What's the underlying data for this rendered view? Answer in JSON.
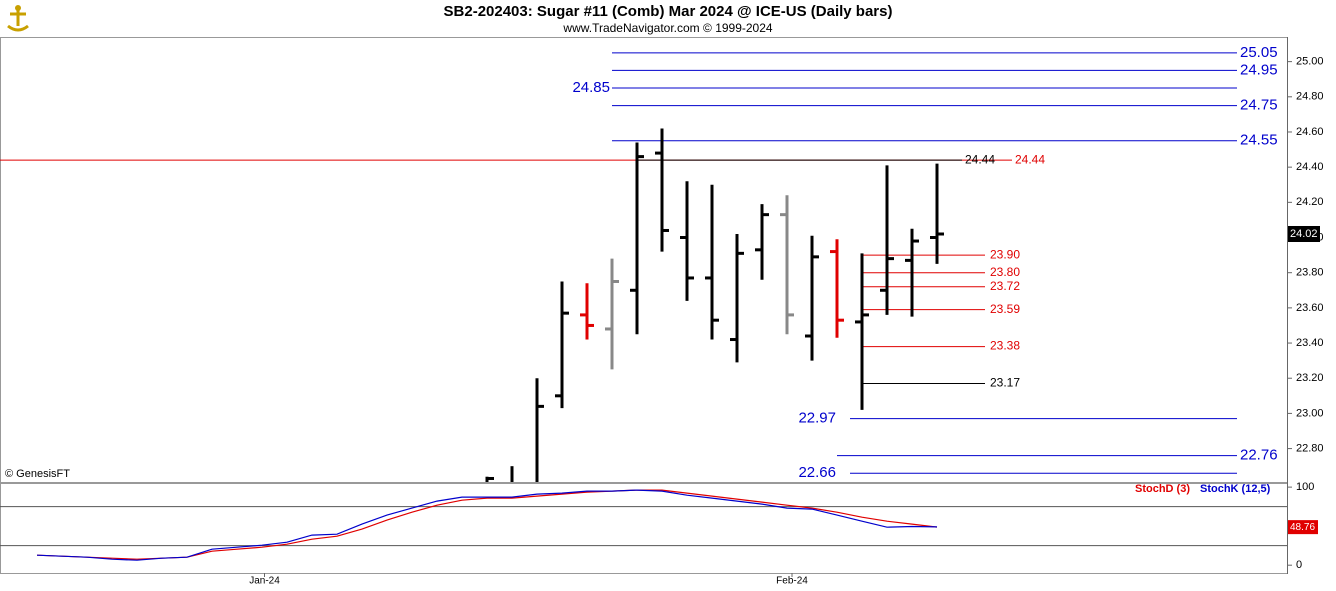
{
  "chart_data": [
    {
      "type": "ohlc",
      "title": "SB2-202403:  Sugar #11 (Comb) Mar 2024 @ ICE-US  (Daily bars)",
      "subtitle": "www.TradeNavigator.com © 1999-2024",
      "annotation": "© GenesisFT",
      "x": [
        18,
        19,
        20,
        21,
        22,
        23,
        24,
        25,
        26,
        27,
        28,
        29,
        30,
        31,
        32,
        33,
        34,
        35,
        36
      ],
      "open": [
        22.5,
        22.55,
        22.6,
        23.1,
        23.56,
        23.48,
        23.7,
        24.48,
        24.0,
        23.77,
        23.42,
        23.93,
        24.13,
        23.44,
        23.92,
        23.52,
        23.7,
        23.87,
        24.0
      ],
      "high": [
        22.64,
        22.7,
        23.2,
        23.75,
        23.74,
        23.88,
        24.54,
        24.62,
        24.32,
        24.3,
        24.02,
        24.19,
        24.24,
        24.01,
        23.99,
        23.91,
        24.41,
        24.05,
        24.42
      ],
      "low": [
        22.4,
        22.45,
        22.55,
        23.03,
        23.42,
        23.25,
        23.45,
        23.92,
        23.64,
        23.42,
        23.29,
        23.76,
        23.45,
        23.3,
        23.43,
        23.02,
        23.56,
        23.55,
        23.85
      ],
      "close": [
        22.63,
        22.6,
        23.04,
        23.57,
        23.5,
        23.75,
        24.46,
        24.04,
        23.77,
        23.53,
        23.91,
        24.13,
        23.56,
        23.89,
        23.53,
        23.56,
        23.88,
        23.98,
        24.02
      ],
      "colors": [
        "#000000",
        "#000000",
        "#000000",
        "#000000",
        "#e00000",
        "#888888",
        "#000000",
        "#000000",
        "#000000",
        "#000000",
        "#000000",
        "#000000",
        "#888888",
        "#000000",
        "#e00000",
        "#000000",
        "#000000",
        "#000000",
        "#000000"
      ],
      "xlim": [
        -1.48,
        50
      ],
      "ylim": [
        22.61,
        25.14
      ],
      "yticks": [
        {
          "value": 22.8,
          "label": "22.80"
        },
        {
          "value": 23.0,
          "label": "23.00"
        },
        {
          "value": 23.2,
          "label": "23.20"
        },
        {
          "value": 23.4,
          "label": "23.40"
        },
        {
          "value": 23.6,
          "label": "23.60"
        },
        {
          "value": 23.8,
          "label": "23.80"
        },
        {
          "value": 24.0,
          "label": "24.00"
        },
        {
          "value": 24.2,
          "label": "24.20"
        },
        {
          "value": 24.4,
          "label": "24.40"
        },
        {
          "value": 24.6,
          "label": "24.60"
        },
        {
          "value": 24.8,
          "label": "24.80"
        },
        {
          "value": 25.0,
          "label": "25.00"
        }
      ],
      "levels": [
        {
          "value": 25.05,
          "label": "25.05",
          "color": "#0000cc"
        },
        {
          "value": 24.95,
          "label": "24.95",
          "color": "#0000cc"
        },
        {
          "value": 24.85,
          "label": "24.85",
          "color": "#0000cc"
        },
        {
          "value": 24.75,
          "label": "24.75",
          "color": "#0000cc"
        },
        {
          "value": 24.55,
          "label": "24.55",
          "color": "#0000cc"
        },
        {
          "value": 24.44,
          "label": "24.44",
          "color": "#e00000"
        },
        {
          "value": 24.44,
          "label": "24.44",
          "color": "#000000"
        },
        {
          "value": 23.9,
          "label": "23.90",
          "color": "#e00000"
        },
        {
          "value": 23.8,
          "label": "23.80",
          "color": "#e00000"
        },
        {
          "value": 23.72,
          "label": "23.72",
          "color": "#e00000"
        },
        {
          "value": 23.59,
          "label": "23.59",
          "color": "#e00000"
        },
        {
          "value": 23.38,
          "label": "23.38",
          "color": "#e00000"
        },
        {
          "value": 23.17,
          "label": "23.17",
          "color": "#000000"
        },
        {
          "value": 22.97,
          "label": "22.97",
          "color": "#0000cc"
        },
        {
          "value": 22.76,
          "label": "22.76",
          "color": "#0000cc"
        },
        {
          "value": 22.66,
          "label": "22.66",
          "color": "#0000cc"
        }
      ]
    },
    {
      "type": "line",
      "x": [
        0,
        1,
        2,
        3,
        4,
        5,
        6,
        7,
        8,
        9,
        10,
        11,
        12,
        13,
        14,
        15,
        16,
        17,
        18,
        19,
        20,
        21,
        22,
        23,
        24,
        25,
        26,
        27,
        28,
        29,
        30,
        31,
        32,
        33,
        34,
        35,
        36
      ],
      "series": [
        {
          "name": "StochD (3)",
          "color": "#e00000",
          "values": [
            12.8,
            11.5,
            10.3,
            9.0,
            7.7,
            9.0,
            10.3,
            17.9,
            20.5,
            23.1,
            26.9,
            33.3,
            37.2,
            46.2,
            57.7,
            67.9,
            76.9,
            83.3,
            85.9,
            85.9,
            88.5,
            91.0,
            93.6,
            94.9,
            96.2,
            96.2,
            92.3,
            88.5,
            84.6,
            80.8,
            76.9,
            73.1,
            67.9,
            61.5,
            56.4,
            52.6,
            48.76
          ]
        },
        {
          "name": "StochK (12,5)",
          "color": "#0000cc",
          "values": [
            12.8,
            11.5,
            10.3,
            7.7,
            6.4,
            9.0,
            10.3,
            20.5,
            23.1,
            25.6,
            29.5,
            38.5,
            39.7,
            52.6,
            64.1,
            73.1,
            82.1,
            87.2,
            87.2,
            87.2,
            91.0,
            92.3,
            94.9,
            94.9,
            96.2,
            94.9,
            89.7,
            85.9,
            82.1,
            78.2,
            73.1,
            71.8,
            64.1,
            56.4,
            48.7,
            49.5,
            49.0
          ]
        }
      ],
      "xlim": [
        -1.48,
        50
      ],
      "ylim": [
        -10,
        104
      ],
      "yticks": [
        0,
        100
      ],
      "guides": [
        75,
        25
      ],
      "xticks": [
        {
          "value": 9.1,
          "label": "Jan-24"
        },
        {
          "value": 30.2,
          "label": "Feb-24"
        }
      ]
    }
  ]
}
